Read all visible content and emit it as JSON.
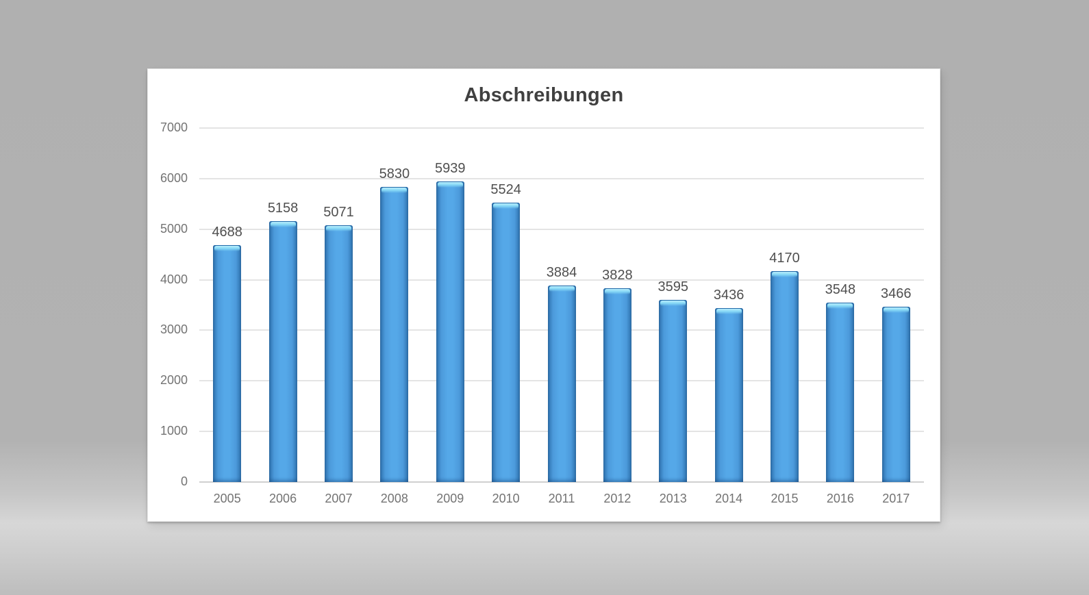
{
  "chart_data": {
    "type": "bar",
    "title": "Abschreibungen",
    "categories": [
      "2005",
      "2006",
      "2007",
      "2008",
      "2009",
      "2010",
      "2011",
      "2012",
      "2013",
      "2014",
      "2015",
      "2016",
      "2017"
    ],
    "values": [
      4688,
      5158,
      5071,
      5830,
      5939,
      5524,
      3884,
      3828,
      3595,
      3436,
      4170,
      3548,
      3466
    ],
    "ylim": [
      0,
      7000
    ],
    "ytick_step": 1000,
    "ytick_labels": [
      "0",
      "1000",
      "2000",
      "3000",
      "4000",
      "5000",
      "6000",
      "7000"
    ],
    "grid": true,
    "legend": false,
    "data_labels": true,
    "colors": {
      "bar_body": "#55A8E8",
      "bar_mid": "#4C9ADB",
      "bar_shade": "#3981BF",
      "bar_edge": "#2D6BA3",
      "bar_highlight": "#B9EDFC",
      "title_text": "#404040",
      "value_label_text": "#4F4F4F",
      "axis_label_text": "#737373",
      "gridline": "#E4E4E4",
      "axis_line": "#D0D0D0",
      "panel_background": "#FFFFFF",
      "backdrop": "#B2B2B2"
    }
  }
}
